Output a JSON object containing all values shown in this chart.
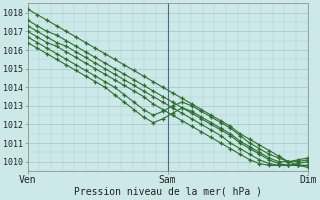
{
  "title": "Pression niveau de la mer( hPa )",
  "bg_color": "#cce8e8",
  "grid_color": "#aacccc",
  "line_color": "#2d6e2d",
  "marker_color": "#2d6e2d",
  "ylim": [
    1009.5,
    1018.5
  ],
  "yticks": [
    1010,
    1011,
    1012,
    1013,
    1014,
    1015,
    1016,
    1017,
    1018
  ],
  "xtick_labels": [
    "Ven",
    "Sam",
    "Dim"
  ],
  "xtick_positions": [
    0,
    48,
    96
  ],
  "x_total": 96,
  "vline_color": "#6666aa",
  "lines": [
    [
      1018.2,
      1017.9,
      1017.6,
      1017.3,
      1017.0,
      1016.7,
      1016.4,
      1016.1,
      1015.8,
      1015.5,
      1015.2,
      1014.9,
      1014.6,
      1014.3,
      1014.0,
      1013.7,
      1013.4,
      1013.1,
      1012.8,
      1012.5,
      1012.2,
      1011.9,
      1011.5,
      1011.2,
      1010.9,
      1010.6,
      1010.3,
      1010.0,
      1009.8,
      1009.7
    ],
    [
      1017.6,
      1017.3,
      1017.0,
      1016.8,
      1016.5,
      1016.2,
      1015.9,
      1015.6,
      1015.3,
      1015.0,
      1014.7,
      1014.4,
      1014.1,
      1013.8,
      1013.5,
      1013.2,
      1012.9,
      1012.6,
      1012.3,
      1012.0,
      1011.7,
      1011.4,
      1011.0,
      1010.7,
      1010.4,
      1010.1,
      1009.9,
      1009.8,
      1009.8,
      1009.8
    ],
    [
      1017.3,
      1017.0,
      1016.7,
      1016.4,
      1016.2,
      1015.9,
      1015.6,
      1015.3,
      1015.0,
      1014.7,
      1014.4,
      1014.1,
      1013.8,
      1013.5,
      1013.2,
      1012.9,
      1012.6,
      1012.3,
      1012.0,
      1011.7,
      1011.4,
      1011.0,
      1010.7,
      1010.4,
      1010.1,
      1009.9,
      1009.8,
      1009.8,
      1009.8,
      1009.8
    ],
    [
      1017.0,
      1016.7,
      1016.4,
      1016.2,
      1015.9,
      1015.6,
      1015.3,
      1015.0,
      1014.7,
      1014.4,
      1014.1,
      1013.8,
      1013.5,
      1013.1,
      1012.8,
      1012.5,
      1012.2,
      1011.9,
      1011.6,
      1011.3,
      1011.0,
      1010.7,
      1010.4,
      1010.1,
      1009.9,
      1009.8,
      1009.8,
      1009.8,
      1009.9,
      1010.0
    ],
    [
      1016.7,
      1016.4,
      1016.1,
      1015.8,
      1015.5,
      1015.2,
      1014.9,
      1014.6,
      1014.3,
      1014.0,
      1013.6,
      1013.2,
      1012.8,
      1012.5,
      1012.7,
      1013.0,
      1013.2,
      1013.0,
      1012.7,
      1012.4,
      1012.1,
      1011.8,
      1011.4,
      1011.0,
      1010.7,
      1010.4,
      1010.2,
      1010.0,
      1010.0,
      1010.1
    ],
    [
      1016.4,
      1016.1,
      1015.8,
      1015.5,
      1015.2,
      1014.9,
      1014.6,
      1014.3,
      1014.0,
      1013.6,
      1013.2,
      1012.8,
      1012.4,
      1012.1,
      1012.3,
      1012.6,
      1012.9,
      1012.7,
      1012.4,
      1012.1,
      1011.8,
      1011.5,
      1011.1,
      1010.8,
      1010.5,
      1010.2,
      1010.0,
      1010.0,
      1010.1,
      1010.2
    ]
  ],
  "marker_sizes": [
    3.5,
    3.5,
    3.5,
    3.5,
    3.5,
    3.5
  ],
  "line_widths": [
    0.8,
    0.8,
    0.8,
    0.8,
    0.8,
    0.8
  ],
  "figsize": [
    3.2,
    2.0
  ],
  "dpi": 100
}
